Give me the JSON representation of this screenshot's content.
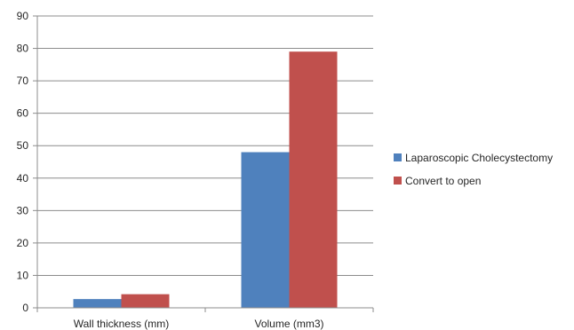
{
  "chart_data": {
    "type": "bar",
    "categories": [
      "Wall thickness (mm)",
      "Volume (mm3)"
    ],
    "series": [
      {
        "name": "Laparoscopic Cholecystectomy",
        "values": [
          2.7,
          48
        ],
        "color": "#4F81BD"
      },
      {
        "name": "Convert to open",
        "values": [
          4.2,
          79
        ],
        "color": "#C0504D"
      }
    ],
    "ylim": [
      0,
      90
    ],
    "yticks": [
      0,
      10,
      20,
      30,
      40,
      50,
      60,
      70,
      80,
      90
    ],
    "grid": true,
    "legend_position": "right"
  }
}
